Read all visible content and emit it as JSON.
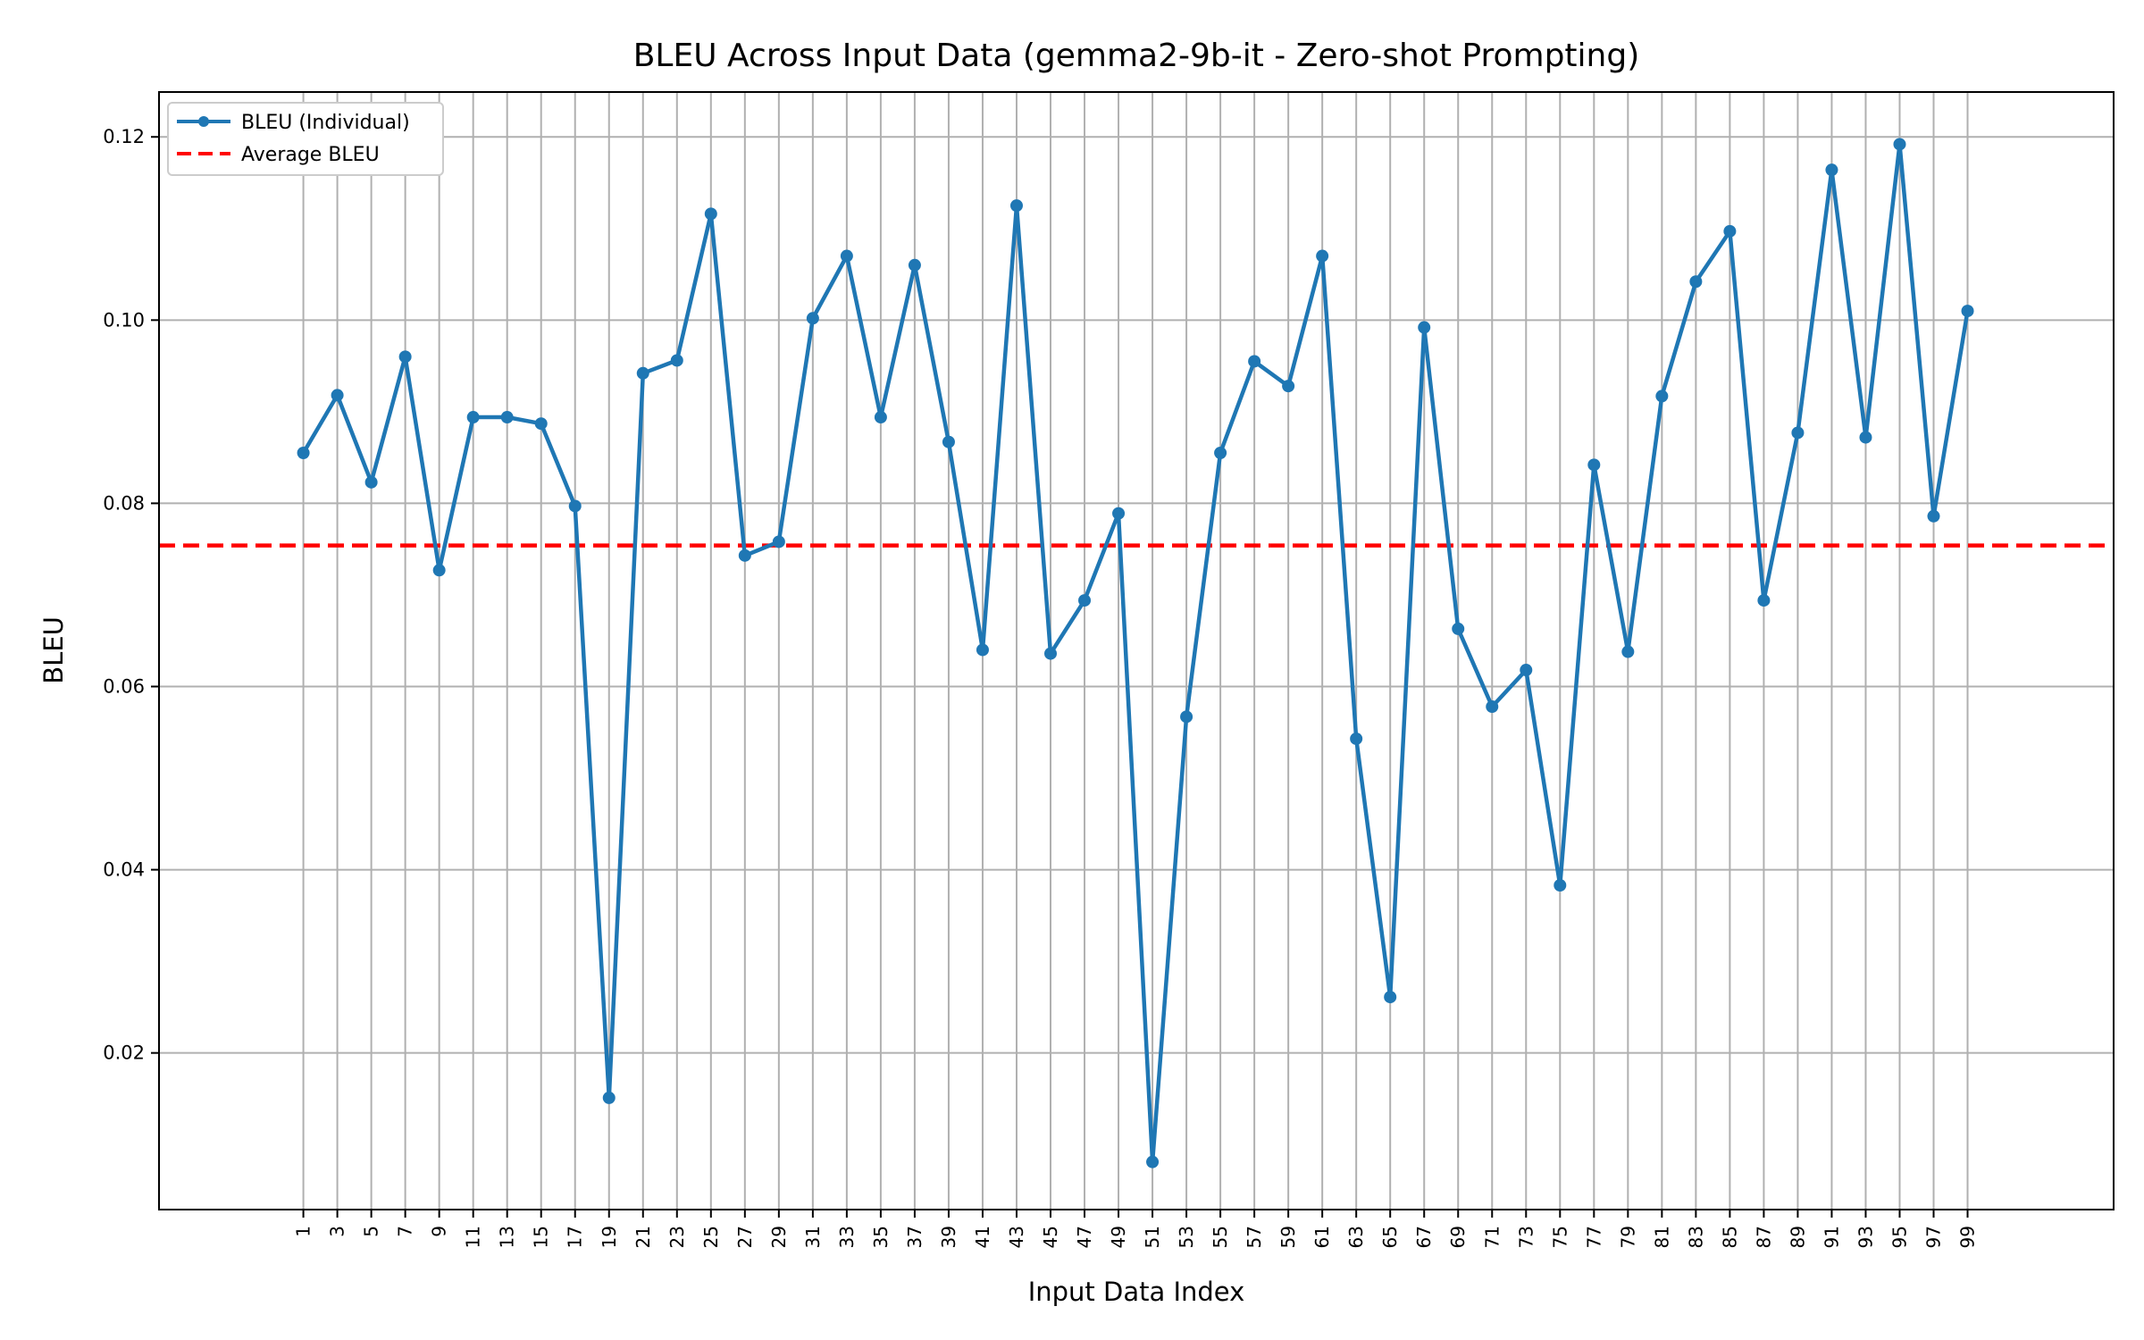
{
  "chart_data": {
    "type": "line",
    "title": "BLEU Across Input Data (gemma2-9b-it - Zero-shot Prompting)",
    "xlabel": "Input Data Index",
    "ylabel": "BLEU",
    "x": [
      1,
      3,
      5,
      7,
      9,
      11,
      13,
      15,
      17,
      19,
      21,
      23,
      25,
      27,
      29,
      31,
      33,
      35,
      37,
      39,
      41,
      43,
      45,
      47,
      49,
      51,
      53,
      55,
      57,
      59,
      61,
      63,
      65,
      67,
      69,
      71,
      73,
      75,
      77,
      79,
      81,
      83,
      85,
      87,
      89,
      91,
      93,
      95,
      97,
      99
    ],
    "xticks": [
      "1",
      "3",
      "5",
      "7",
      "9",
      "11",
      "13",
      "15",
      "17",
      "19",
      "21",
      "23",
      "25",
      "27",
      "29",
      "31",
      "33",
      "35",
      "37",
      "39",
      "41",
      "43",
      "45",
      "47",
      "49",
      "51",
      "53",
      "55",
      "57",
      "59",
      "61",
      "63",
      "65",
      "67",
      "69",
      "71",
      "73",
      "75",
      "77",
      "79",
      "81",
      "83",
      "85",
      "87",
      "89",
      "91",
      "93",
      "95",
      "97",
      "99"
    ],
    "yticks": [
      "0.02",
      "0.04",
      "0.06",
      "0.08",
      "0.10",
      "0.12"
    ],
    "ytick_values": [
      0.02,
      0.04,
      0.06,
      0.08,
      0.1,
      0.12
    ],
    "xlim": [
      -7.5,
      107.6
    ],
    "ylim": [
      0.0029,
      0.1249
    ],
    "series": [
      {
        "name": "BLEU (Individual)",
        "color": "#1f77b4",
        "style": "solid-with-markers",
        "values": [
          0.0855,
          0.0918,
          0.0823,
          0.096,
          0.0727,
          0.0894,
          0.0894,
          0.0887,
          0.0797,
          0.0151,
          0.0942,
          0.0956,
          0.1116,
          0.0743,
          0.0758,
          0.1002,
          0.107,
          0.0894,
          0.106,
          0.0867,
          0.064,
          0.1125,
          0.0636,
          0.0694,
          0.0789,
          0.0081,
          0.0567,
          0.0855,
          0.0955,
          0.0928,
          0.107,
          0.0543,
          0.0261,
          0.0992,
          0.0663,
          0.0578,
          0.0618,
          0.0383,
          0.0842,
          0.0638,
          0.0917,
          0.1042,
          0.1097,
          0.0694,
          0.0877,
          0.1164,
          0.0872,
          0.1192,
          0.0786,
          0.101
        ]
      },
      {
        "name": "Average BLEU",
        "color": "#ff0000",
        "style": "dashed",
        "value": 0.0754
      }
    ],
    "grid": true,
    "legend_position": "upper-left"
  }
}
